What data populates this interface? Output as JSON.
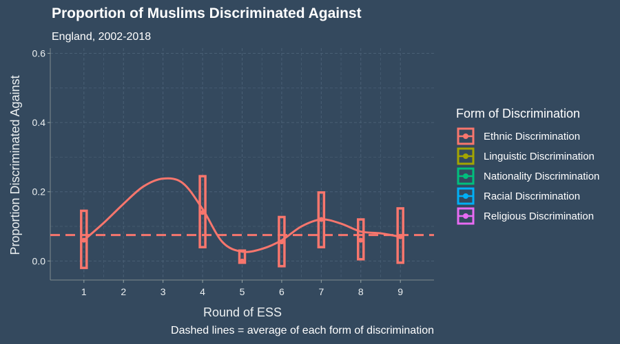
{
  "chart_data": {
    "type": "line",
    "title": "Proportion of Muslims Discriminated Against",
    "subtitle": "England, 2002-2018",
    "caption": "Dashed lines = average of each form of discrimination",
    "xlabel": "Round of ESS",
    "ylabel": "Proportion Discriminated Against",
    "x": [
      1,
      2,
      3,
      4,
      5,
      6,
      7,
      8,
      9
    ],
    "xlim": [
      0.15,
      9.85
    ],
    "ylim": [
      -0.055,
      0.615
    ],
    "yticks": [
      0.0,
      0.2,
      0.4,
      0.6
    ],
    "ytick_labels": [
      "0.0",
      "0.2",
      "0.4",
      "0.6"
    ],
    "grid": true,
    "legend": {
      "title": "Form of Discrimination",
      "position": "right",
      "entries": [
        {
          "name": "Ethnic Discrimination",
          "color": "#f8766d"
        },
        {
          "name": "Linguistic Discrimination",
          "color": "#a3a500"
        },
        {
          "name": "Nationality Discrimination",
          "color": "#00bf7d"
        },
        {
          "name": "Racial Discrimination",
          "color": "#00b0f6"
        },
        {
          "name": "Religious Discrimination",
          "color": "#e76bf3"
        }
      ]
    },
    "series": [
      {
        "name": "Ethnic Discrimination",
        "color": "#f8766d",
        "points": [
          {
            "x": 1,
            "y": 0.06,
            "low": -0.02,
            "high": 0.145
          },
          {
            "x": 4,
            "y": 0.14,
            "low": 0.04,
            "high": 0.245
          },
          {
            "x": 5,
            "y": 0.0,
            "low": -0.005,
            "high": 0.03
          },
          {
            "x": 6,
            "y": 0.055,
            "low": -0.015,
            "high": 0.127
          },
          {
            "x": 7,
            "y": 0.12,
            "low": 0.04,
            "high": 0.198
          },
          {
            "x": 8,
            "y": 0.06,
            "low": 0.005,
            "high": 0.12
          },
          {
            "x": 9,
            "y": 0.07,
            "low": -0.005,
            "high": 0.152
          }
        ],
        "smooth_curve": [
          [
            1,
            0.06
          ],
          [
            1.5,
            0.11
          ],
          [
            2,
            0.165
          ],
          [
            2.5,
            0.215
          ],
          [
            3,
            0.238
          ],
          [
            3.5,
            0.225
          ],
          [
            4,
            0.15
          ],
          [
            4.5,
            0.055
          ],
          [
            5,
            0.027
          ],
          [
            5.5,
            0.035
          ],
          [
            6,
            0.06
          ],
          [
            6.5,
            0.1
          ],
          [
            7,
            0.12
          ],
          [
            7.5,
            0.108
          ],
          [
            8,
            0.085
          ],
          [
            8.5,
            0.08
          ],
          [
            9,
            0.07
          ]
        ],
        "mean": 0.075
      }
    ]
  }
}
